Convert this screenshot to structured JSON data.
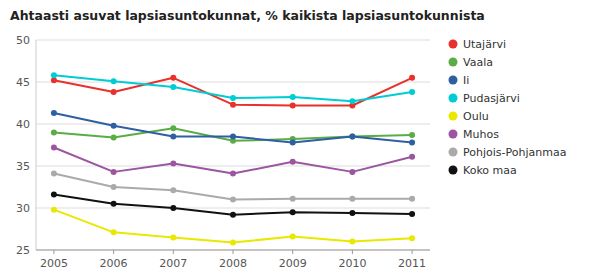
{
  "chart_data": {
    "type": "line",
    "title": "Ahtaasti asuvat lapsiasuntokunnat, % kaikista lapsiasuntokunnista",
    "x": [
      2005,
      2006,
      2007,
      2008,
      2009,
      2010,
      2011
    ],
    "xlim": [
      2004.7,
      2011.3
    ],
    "xticks": [
      2005,
      2006,
      2007,
      2008,
      2009,
      2010,
      2011
    ],
    "ylim": [
      25,
      50
    ],
    "yticks": [
      25,
      30,
      35,
      40,
      45,
      50
    ],
    "grid": true,
    "legend": "right",
    "marker": "circle",
    "series": [
      {
        "name": "Utajärvi",
        "color": "#e8312a",
        "values": [
          45.2,
          43.8,
          45.5,
          42.3,
          42.2,
          42.2,
          45.5
        ]
      },
      {
        "name": "Vaala",
        "color": "#5aad45",
        "values": [
          39.0,
          38.4,
          39.5,
          38.0,
          38.2,
          38.5,
          38.7
        ]
      },
      {
        "name": "Ii",
        "color": "#2e5fa3",
        "values": [
          41.3,
          39.8,
          38.5,
          38.5,
          37.8,
          38.5,
          37.8
        ]
      },
      {
        "name": "Pudasjärvi",
        "color": "#00ccd4",
        "values": [
          45.8,
          45.1,
          44.4,
          43.1,
          43.2,
          42.7,
          43.8
        ]
      },
      {
        "name": "Oulu",
        "color": "#e8e800",
        "values": [
          29.8,
          27.1,
          26.5,
          25.9,
          26.6,
          26.0,
          26.4
        ]
      },
      {
        "name": "Muhos",
        "color": "#9c55a0",
        "values": [
          37.2,
          34.3,
          35.3,
          34.1,
          35.5,
          34.3,
          36.1
        ]
      },
      {
        "name": "Pohjois-Pohjanmaa",
        "color": "#aaaaaa",
        "values": [
          34.1,
          32.5,
          32.1,
          31.0,
          31.1,
          31.1,
          31.1
        ]
      },
      {
        "name": "Koko maa",
        "color": "#111111",
        "values": [
          31.6,
          30.5,
          30.0,
          29.2,
          29.5,
          29.4,
          29.3
        ]
      }
    ]
  }
}
